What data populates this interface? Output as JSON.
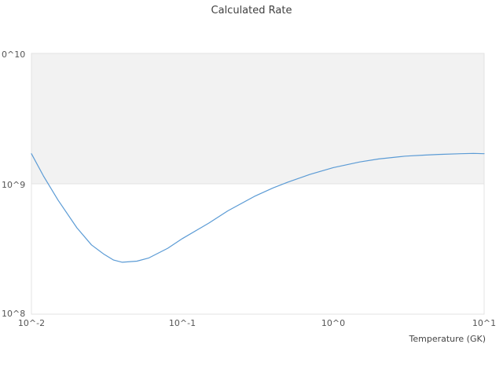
{
  "title": "Calculated Rate",
  "x_axis_label": "Temperature (GK)",
  "x_tick_labels": [
    "10^-2",
    "10^-1",
    "10^0",
    "10^1"
  ],
  "y_tick_labels": [
    "0^10",
    "10^9",
    "10^8"
  ],
  "colors": {
    "line": "#5b9bd5",
    "band": "#f2f2f2",
    "plot_border": "#e3e3e3",
    "tick_text": "#555555",
    "title_text": "#3f3f3f"
  },
  "chart_data": {
    "type": "line",
    "title": "Calculated Rate",
    "xlabel": "Temperature (GK)",
    "ylabel": "",
    "xscale": "log",
    "yscale": "log",
    "xlim": [
      0.01,
      10
    ],
    "ylim": [
      100000000.0,
      10000000000.0
    ],
    "grid": false,
    "legend": "none",
    "shaded_band": {
      "y0": 1000000000.0,
      "y1": 10000000000.0
    },
    "series": [
      {
        "name": "Calculated Rate",
        "x": [
          0.01,
          0.012,
          0.015,
          0.02,
          0.025,
          0.03,
          0.035,
          0.04,
          0.05,
          0.06,
          0.08,
          0.1,
          0.15,
          0.2,
          0.3,
          0.4,
          0.5,
          0.7,
          1.0,
          1.5,
          2.0,
          3.0,
          4.0,
          5.0,
          7.0,
          8.5,
          10.0
        ],
        "y": [
          1700000000.0,
          1150000000.0,
          750000000.0,
          460000000.0,
          340000000.0,
          290000000.0,
          260000000.0,
          250000000.0,
          255000000.0,
          270000000.0,
          320000000.0,
          380000000.0,
          500000000.0,
          620000000.0,
          800000000.0,
          930000000.0,
          1030000000.0,
          1180000000.0,
          1330000000.0,
          1470000000.0,
          1550000000.0,
          1630000000.0,
          1660000000.0,
          1680000000.0,
          1700000000.0,
          1710000000.0,
          1700000000.0
        ]
      }
    ]
  }
}
